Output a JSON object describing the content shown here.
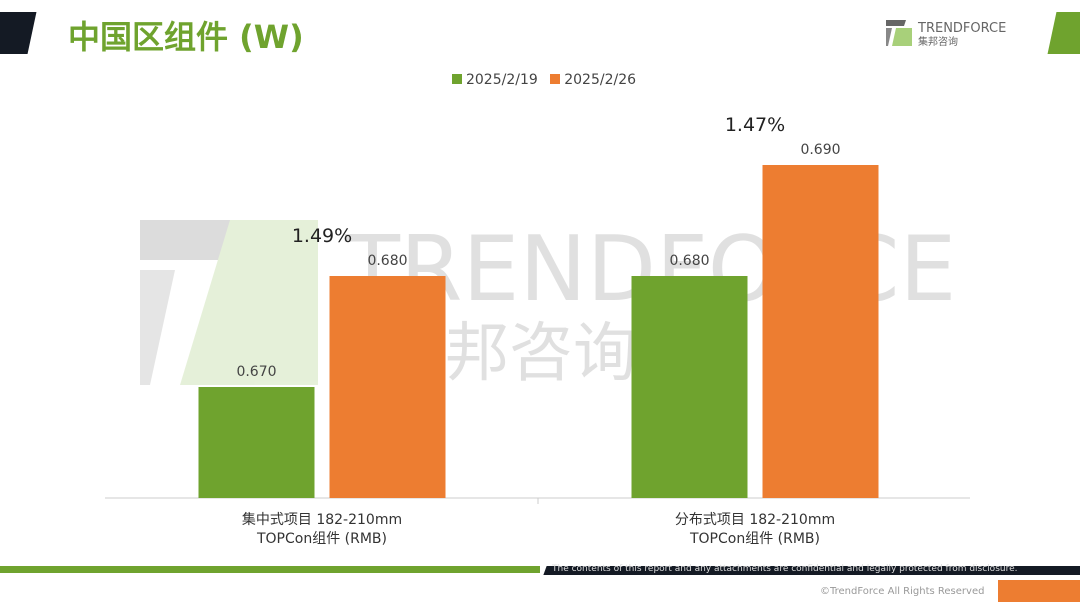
{
  "header": {
    "title": "中国区组件 (W)",
    "logo_text": "TRENDFORCE",
    "logo_cn": "集邦咨询"
  },
  "footer": {
    "disclaimer": "The contents of this report and any attachments are confidential and legally protected from disclosure.",
    "copyright": "©TrendForce All Rights Reserved"
  },
  "chart_data": {
    "type": "bar",
    "categories": [
      [
        "集中式项目 182-210mm",
        "TOPCon组件 (RMB)"
      ],
      [
        "分布式项目 182-210mm",
        "TOPCon组件 (RMB)"
      ]
    ],
    "series": [
      {
        "name": "2025/2/19",
        "color": "#6fa32e",
        "values": [
          0.67,
          0.68
        ],
        "labels": [
          "0.670",
          "0.680"
        ]
      },
      {
        "name": "2025/2/26",
        "color": "#ed7d31",
        "values": [
          0.68,
          0.69
        ],
        "labels": [
          "0.680",
          "0.690"
        ]
      }
    ],
    "annotations": [
      "1.49%",
      "1.47%"
    ],
    "ylim": [
      0.66,
      0.7
    ],
    "grid": false,
    "legend": "top"
  }
}
